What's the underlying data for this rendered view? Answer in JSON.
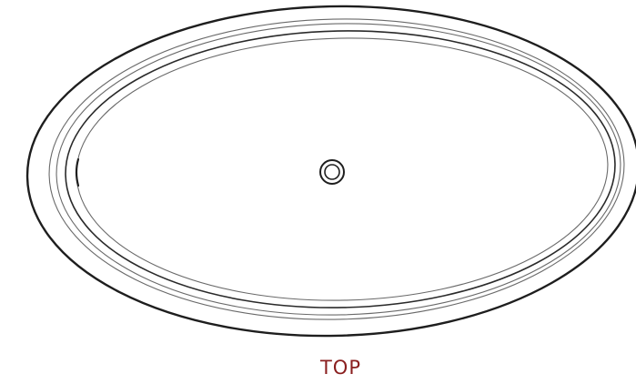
{
  "view": {
    "label": "TOP"
  },
  "colors": {
    "label": "#8a1f1f",
    "line": "#1e1e1e",
    "background": "#ffffff"
  }
}
